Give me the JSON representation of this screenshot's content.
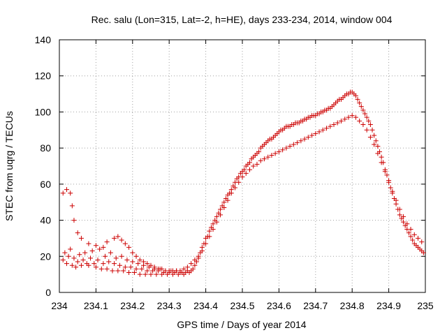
{
  "chart_data": {
    "type": "scatter",
    "title": "Rec. salu (Lon=315, Lat=-2, h=HE), days 233-234, 2014, window 004",
    "xlabel": "GPS time / Days of year 2014",
    "ylabel": "STEC from uqrg / TECUs",
    "xlim": [
      234,
      235
    ],
    "ylim": [
      0,
      140
    ],
    "grid": true,
    "marker": "plus",
    "marker_color": "#cc0000",
    "x_ticks": [
      "234",
      "234.1",
      "234.2",
      "234.3",
      "234.4",
      "234.5",
      "234.6",
      "234.7",
      "234.8",
      "234.9",
      "235"
    ],
    "y_ticks": [
      "0",
      "20",
      "40",
      "60",
      "80",
      "100",
      "120",
      "140"
    ],
    "series": [
      {
        "points": [
          [
            234.01,
            18
          ],
          [
            234.015,
            22
          ],
          [
            234.02,
            16
          ],
          [
            234.025,
            20
          ],
          [
            234.03,
            24
          ],
          [
            234.035,
            15
          ],
          [
            234.04,
            19
          ],
          [
            234.045,
            14
          ],
          [
            234.05,
            17
          ],
          [
            234.055,
            21
          ],
          [
            234.06,
            15
          ],
          [
            234.065,
            18
          ],
          [
            234.07,
            22
          ],
          [
            234.075,
            16
          ],
          [
            234.08,
            15
          ],
          [
            234.085,
            19
          ],
          [
            234.09,
            23
          ],
          [
            234.095,
            16
          ],
          [
            234.1,
            14
          ],
          [
            234.105,
            18
          ],
          [
            234.11,
            24
          ],
          [
            234.115,
            13
          ],
          [
            234.12,
            16
          ],
          [
            234.125,
            20
          ],
          [
            234.13,
            13
          ],
          [
            234.135,
            17
          ],
          [
            234.14,
            22
          ],
          [
            234.145,
            12
          ],
          [
            234.15,
            16
          ],
          [
            234.155,
            19
          ],
          [
            234.16,
            12
          ],
          [
            234.165,
            15
          ],
          [
            234.17,
            20
          ],
          [
            234.175,
            12
          ],
          [
            234.18,
            14
          ],
          [
            234.185,
            18
          ],
          [
            234.19,
            11
          ],
          [
            234.195,
            14
          ],
          [
            234.2,
            17
          ],
          [
            234.205,
            11
          ],
          [
            234.21,
            13
          ],
          [
            234.215,
            16
          ],
          [
            234.22,
            10
          ],
          [
            234.225,
            13
          ],
          [
            234.23,
            15
          ],
          [
            234.235,
            10
          ],
          [
            234.24,
            12
          ],
          [
            234.245,
            14
          ],
          [
            234.25,
            10
          ],
          [
            234.255,
            12
          ],
          [
            234.26,
            13
          ],
          [
            234.265,
            10
          ],
          [
            234.27,
            12
          ],
          [
            234.275,
            13
          ],
          [
            234.28,
            10
          ],
          [
            234.285,
            11
          ],
          [
            234.29,
            12
          ],
          [
            234.295,
            10
          ],
          [
            234.3,
            11
          ],
          [
            234.305,
            12
          ],
          [
            234.31,
            10
          ],
          [
            234.315,
            11
          ],
          [
            234.32,
            12
          ],
          [
            234.325,
            10
          ],
          [
            234.33,
            11
          ],
          [
            234.335,
            11
          ],
          [
            234.34,
            10
          ],
          [
            234.345,
            11
          ],
          [
            234.35,
            12
          ],
          [
            234.355,
            11
          ],
          [
            234.36,
            12
          ],
          [
            234.365,
            13
          ],
          [
            234.37,
            15
          ],
          [
            234.375,
            17
          ],
          [
            234.38,
            19
          ],
          [
            234.385,
            22
          ],
          [
            234.39,
            25
          ],
          [
            234.395,
            27
          ],
          [
            234.4,
            30
          ],
          [
            234.405,
            31
          ],
          [
            234.41,
            34
          ],
          [
            234.415,
            36
          ],
          [
            234.42,
            38
          ],
          [
            234.425,
            40
          ],
          [
            234.43,
            42
          ],
          [
            234.435,
            44
          ],
          [
            234.44,
            46
          ],
          [
            234.445,
            48
          ],
          [
            234.45,
            50
          ],
          [
            234.455,
            52
          ],
          [
            234.46,
            54
          ],
          [
            234.465,
            55
          ],
          [
            234.47,
            57
          ],
          [
            234.475,
            59
          ],
          [
            234.48,
            61
          ],
          [
            234.485,
            63
          ],
          [
            234.49,
            64
          ],
          [
            234.495,
            66
          ],
          [
            234.5,
            67
          ],
          [
            234.505,
            68
          ],
          [
            234.51,
            70
          ],
          [
            234.515,
            71
          ],
          [
            234.52,
            72
          ],
          [
            234.525,
            74
          ],
          [
            234.53,
            75
          ],
          [
            234.535,
            76
          ],
          [
            234.54,
            77
          ],
          [
            234.545,
            78
          ],
          [
            234.55,
            80
          ],
          [
            234.555,
            81
          ],
          [
            234.56,
            82
          ],
          [
            234.565,
            83
          ],
          [
            234.57,
            84
          ],
          [
            234.575,
            85
          ],
          [
            234.58,
            85
          ],
          [
            234.585,
            86
          ],
          [
            234.59,
            87
          ],
          [
            234.595,
            88
          ],
          [
            234.6,
            89
          ],
          [
            234.605,
            90
          ],
          [
            234.61,
            90
          ],
          [
            234.615,
            91
          ],
          [
            234.62,
            92
          ],
          [
            234.625,
            92
          ],
          [
            234.63,
            92
          ],
          [
            234.635,
            93
          ],
          [
            234.64,
            93
          ],
          [
            234.645,
            94
          ],
          [
            234.65,
            94
          ],
          [
            234.655,
            94
          ],
          [
            234.66,
            95
          ],
          [
            234.665,
            95
          ],
          [
            234.67,
            96
          ],
          [
            234.675,
            96
          ],
          [
            234.68,
            97
          ],
          [
            234.685,
            97
          ],
          [
            234.69,
            98
          ],
          [
            234.695,
            98
          ],
          [
            234.7,
            98
          ],
          [
            234.705,
            99
          ],
          [
            234.71,
            99
          ],
          [
            234.715,
            100
          ],
          [
            234.72,
            100
          ],
          [
            234.725,
            101
          ],
          [
            234.73,
            101
          ],
          [
            234.735,
            102
          ],
          [
            234.74,
            102
          ],
          [
            234.745,
            103
          ],
          [
            234.75,
            104
          ],
          [
            234.755,
            105
          ],
          [
            234.76,
            106
          ],
          [
            234.765,
            107
          ],
          [
            234.77,
            107
          ],
          [
            234.775,
            108
          ],
          [
            234.78,
            109
          ],
          [
            234.785,
            110
          ],
          [
            234.79,
            110
          ],
          [
            234.795,
            111
          ],
          [
            234.8,
            111
          ],
          [
            234.805,
            110
          ],
          [
            234.81,
            109
          ],
          [
            234.815,
            107
          ],
          [
            234.82,
            105
          ],
          [
            234.825,
            103
          ],
          [
            234.83,
            101
          ],
          [
            234.835,
            99
          ],
          [
            234.84,
            97
          ],
          [
            234.845,
            95
          ],
          [
            234.85,
            93
          ],
          [
            234.855,
            90
          ],
          [
            234.86,
            87
          ],
          [
            234.865,
            84
          ],
          [
            234.87,
            81
          ],
          [
            234.875,
            78
          ],
          [
            234.88,
            75
          ],
          [
            234.885,
            72
          ],
          [
            234.89,
            68
          ],
          [
            234.895,
            65
          ],
          [
            234.9,
            62
          ],
          [
            234.905,
            58
          ],
          [
            234.91,
            55
          ],
          [
            234.915,
            52
          ],
          [
            234.92,
            49
          ],
          [
            234.925,
            46
          ],
          [
            234.93,
            43
          ],
          [
            234.935,
            41
          ],
          [
            234.94,
            39
          ],
          [
            234.945,
            37
          ],
          [
            234.95,
            35
          ],
          [
            234.955,
            33
          ],
          [
            234.96,
            31
          ],
          [
            234.965,
            29
          ],
          [
            234.97,
            27
          ],
          [
            234.975,
            26
          ],
          [
            234.98,
            25
          ],
          [
            234.985,
            24
          ],
          [
            234.99,
            23
          ],
          [
            234.995,
            22
          ],
          [
            234.01,
            55
          ],
          [
            234.02,
            57
          ],
          [
            234.03,
            55
          ],
          [
            234.035,
            48
          ],
          [
            234.04,
            40
          ],
          [
            234.05,
            33
          ],
          [
            234.06,
            30
          ],
          [
            234.08,
            27
          ],
          [
            234.1,
            26
          ],
          [
            234.12,
            25
          ],
          [
            234.13,
            28
          ],
          [
            234.15,
            30
          ],
          [
            234.16,
            31
          ],
          [
            234.17,
            29
          ],
          [
            234.18,
            27
          ],
          [
            234.19,
            25
          ],
          [
            234.2,
            22
          ],
          [
            234.21,
            20
          ],
          [
            234.22,
            18
          ],
          [
            234.23,
            17
          ],
          [
            234.24,
            16
          ],
          [
            234.25,
            15
          ],
          [
            234.26,
            14
          ],
          [
            234.27,
            13
          ],
          [
            234.28,
            13
          ],
          [
            234.29,
            12
          ],
          [
            234.3,
            12
          ],
          [
            234.31,
            12
          ],
          [
            234.32,
            12
          ],
          [
            234.33,
            12
          ],
          [
            234.34,
            13
          ],
          [
            234.35,
            14
          ],
          [
            234.36,
            16
          ],
          [
            234.37,
            18
          ],
          [
            234.38,
            20
          ],
          [
            234.39,
            23
          ],
          [
            234.4,
            27
          ],
          [
            234.41,
            31
          ],
          [
            234.42,
            35
          ],
          [
            234.43,
            39
          ],
          [
            234.44,
            43
          ],
          [
            234.45,
            47
          ],
          [
            234.46,
            51
          ],
          [
            234.47,
            55
          ],
          [
            234.48,
            58
          ],
          [
            234.49,
            61
          ],
          [
            234.5,
            64
          ],
          [
            234.51,
            66
          ],
          [
            234.52,
            68
          ],
          [
            234.53,
            70
          ],
          [
            234.54,
            71
          ],
          [
            234.55,
            73
          ],
          [
            234.56,
            74
          ],
          [
            234.57,
            75
          ],
          [
            234.58,
            76
          ],
          [
            234.59,
            77
          ],
          [
            234.6,
            78
          ],
          [
            234.61,
            79
          ],
          [
            234.62,
            80
          ],
          [
            234.63,
            81
          ],
          [
            234.64,
            82
          ],
          [
            234.65,
            83
          ],
          [
            234.66,
            84
          ],
          [
            234.67,
            85
          ],
          [
            234.68,
            86
          ],
          [
            234.69,
            87
          ],
          [
            234.7,
            88
          ],
          [
            234.71,
            89
          ],
          [
            234.72,
            90
          ],
          [
            234.73,
            91
          ],
          [
            234.74,
            92
          ],
          [
            234.75,
            93
          ],
          [
            234.76,
            94
          ],
          [
            234.77,
            95
          ],
          [
            234.78,
            96
          ],
          [
            234.79,
            97
          ],
          [
            234.8,
            98
          ],
          [
            234.81,
            97
          ],
          [
            234.82,
            95
          ],
          [
            234.83,
            93
          ],
          [
            234.84,
            90
          ],
          [
            234.85,
            86
          ],
          [
            234.86,
            82
          ],
          [
            234.87,
            77
          ],
          [
            234.88,
            72
          ],
          [
            234.89,
            67
          ],
          [
            234.9,
            61
          ],
          [
            234.91,
            56
          ],
          [
            234.92,
            51
          ],
          [
            234.93,
            46
          ],
          [
            234.94,
            42
          ],
          [
            234.95,
            38
          ],
          [
            234.96,
            35
          ],
          [
            234.97,
            32
          ],
          [
            234.98,
            30
          ],
          [
            234.99,
            28
          ]
        ]
      }
    ]
  }
}
